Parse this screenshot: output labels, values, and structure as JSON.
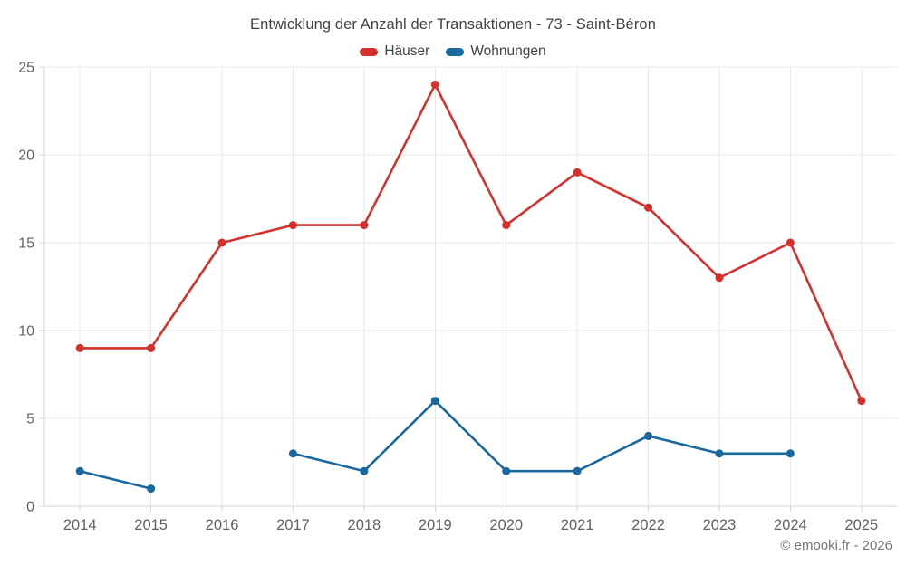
{
  "header": {
    "title": "Entwicklung der Anzahl der Transaktionen - 73 - Saint-Béron"
  },
  "legend": {
    "items": [
      {
        "label": "Häuser",
        "color": "#d5302c"
      },
      {
        "label": "Wohnungen",
        "color": "#19689f"
      }
    ]
  },
  "footer": {
    "copyright": "© emooki.fr - 2026"
  },
  "colors": {
    "hauser_red": "#d5302c",
    "wohnungen_blue": "#19689f",
    "gridline": "#e8e8e8",
    "axis_line": "#d6d6d6",
    "tick_label": "#616161",
    "title_text": "#424242",
    "footer_text": "#757575"
  },
  "chart_data": {
    "type": "line",
    "title": "Entwicklung der Anzahl der Transaktionen - 73 - Saint-Béron",
    "categories": [
      "2014",
      "2015",
      "2016",
      "2017",
      "2018",
      "2019",
      "2020",
      "2021",
      "2022",
      "2023",
      "2024",
      "2025"
    ],
    "series": [
      {
        "name": "Häuser",
        "color": "#d5302c",
        "values": [
          9,
          9,
          15,
          16,
          16,
          24,
          16,
          19,
          17,
          13,
          15,
          6
        ]
      },
      {
        "name": "Wohnungen",
        "color": "#19689f",
        "values": [
          2,
          1,
          null,
          3,
          2,
          6,
          2,
          2,
          4,
          3,
          3,
          null
        ]
      }
    ],
    "xlabel": "",
    "ylabel": "",
    "ylim": [
      0,
      25
    ],
    "yticks": [
      0,
      5,
      10,
      15,
      20,
      25
    ],
    "grid": true,
    "legend_position": "top",
    "marker_radius": 4.5,
    "line_width": 2.6
  }
}
